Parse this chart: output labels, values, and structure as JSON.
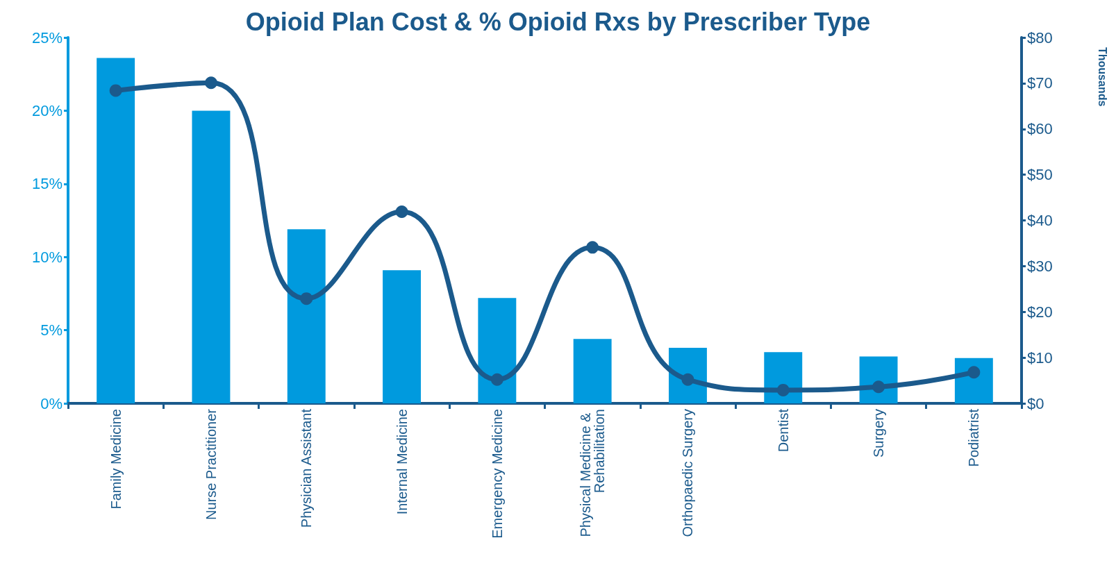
{
  "chart_data": {
    "type": "bar",
    "title": "Opioid Plan Cost & % Opioid Rxs by Prescriber Type",
    "y2label": "Thousands",
    "categories": [
      "Family Medicine",
      "Nurse Practitioner",
      "Physician Assistant",
      "Internal Medicine",
      "Emergency Medicine",
      "Physical Medicine & Rehabilitation",
      "Orthopaedic Surgery",
      "Dentist",
      "Surgery",
      "Podiatrist"
    ],
    "series": [
      {
        "color": "#009ade",
        "values": [
          23.6,
          20.0,
          11.9,
          9.1,
          7.2,
          4.4,
          3.8,
          3.5,
          3.2,
          3.1
        ]
      },
      {
        "type": "line",
        "axis": "y2",
        "color": "#1b5a8c",
        "marker": "circle",
        "values": [
          68.4,
          70.1,
          22.9,
          41.9,
          5.2,
          34.1,
          5.2,
          2.9,
          3.6,
          6.8
        ]
      }
    ],
    "ylim": [
      0,
      25
    ],
    "yticks": [
      {
        "value": 0,
        "label": "0%"
      },
      {
        "value": 5,
        "label": "5%"
      },
      {
        "value": 10,
        "label": "10%"
      },
      {
        "value": 15,
        "label": "15%"
      },
      {
        "value": 20,
        "label": "20%"
      },
      {
        "value": 25,
        "label": "25%"
      }
    ],
    "y2lim": [
      0,
      80
    ],
    "y2ticks": [
      {
        "value": 0,
        "label": "$0"
      },
      {
        "value": 10,
        "label": "$10"
      },
      {
        "value": 20,
        "label": "$20"
      },
      {
        "value": 30,
        "label": "$30"
      },
      {
        "value": 40,
        "label": "$40"
      },
      {
        "value": 50,
        "label": "$50"
      },
      {
        "value": 60,
        "label": "$60"
      },
      {
        "value": 70,
        "label": "$70"
      },
      {
        "value": 80,
        "label": "$80"
      }
    ],
    "grid": false
  }
}
